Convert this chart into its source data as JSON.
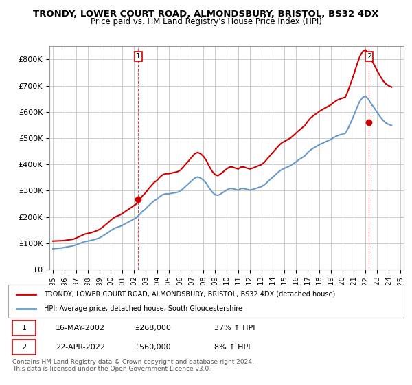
{
  "title": "TRONDY, LOWER COURT ROAD, ALMONDSBURY, BRISTOL, BS32 4DX",
  "subtitle": "Price paid vs. HM Land Registry's House Price Index (HPI)",
  "legend_line1": "TRONDY, LOWER COURT ROAD, ALMONDSBURY, BRISTOL, BS32 4DX (detached house)",
  "legend_line2": "HPI: Average price, detached house, South Gloucestershire",
  "annotation1_label": "1",
  "annotation1_date": "16-MAY-2002",
  "annotation1_price": "£268,000",
  "annotation1_hpi": "37% ↑ HPI",
  "annotation2_label": "2",
  "annotation2_date": "22-APR-2022",
  "annotation2_price": "£560,000",
  "annotation2_hpi": "8% ↑ HPI",
  "footnote": "Contains HM Land Registry data © Crown copyright and database right 2024.\nThis data is licensed under the Open Government Licence v3.0.",
  "red_color": "#cc0000",
  "blue_color": "#6699cc",
  "background_color": "#ffffff",
  "grid_color": "#cccccc",
  "ylim": [
    0,
    850000
  ],
  "yticks": [
    0,
    100000,
    200000,
    300000,
    400000,
    500000,
    600000,
    700000,
    800000
  ],
  "sale1_x": 2002.37,
  "sale1_y": 268000,
  "sale2_x": 2022.3,
  "sale2_y": 560000,
  "hpi_years": [
    1995.0,
    1995.25,
    1995.5,
    1995.75,
    1996.0,
    1996.25,
    1996.5,
    1996.75,
    1997.0,
    1997.25,
    1997.5,
    1997.75,
    1998.0,
    1998.25,
    1998.5,
    1998.75,
    1999.0,
    1999.25,
    1999.5,
    1999.75,
    2000.0,
    2000.25,
    2000.5,
    2000.75,
    2001.0,
    2001.25,
    2001.5,
    2001.75,
    2002.0,
    2002.25,
    2002.5,
    2002.75,
    2003.0,
    2003.25,
    2003.5,
    2003.75,
    2004.0,
    2004.25,
    2004.5,
    2004.75,
    2005.0,
    2005.25,
    2005.5,
    2005.75,
    2006.0,
    2006.25,
    2006.5,
    2006.75,
    2007.0,
    2007.25,
    2007.5,
    2007.75,
    2008.0,
    2008.25,
    2008.5,
    2008.75,
    2009.0,
    2009.25,
    2009.5,
    2009.75,
    2010.0,
    2010.25,
    2010.5,
    2010.75,
    2011.0,
    2011.25,
    2011.5,
    2011.75,
    2012.0,
    2012.25,
    2012.5,
    2012.75,
    2013.0,
    2013.25,
    2013.5,
    2013.75,
    2014.0,
    2014.25,
    2014.5,
    2014.75,
    2015.0,
    2015.25,
    2015.5,
    2015.75,
    2016.0,
    2016.25,
    2016.5,
    2016.75,
    2017.0,
    2017.25,
    2017.5,
    2017.75,
    2018.0,
    2018.25,
    2018.5,
    2018.75,
    2019.0,
    2019.25,
    2019.5,
    2019.75,
    2020.0,
    2020.25,
    2020.5,
    2020.75,
    2021.0,
    2021.25,
    2021.5,
    2021.75,
    2022.0,
    2022.25,
    2022.5,
    2022.75,
    2023.0,
    2023.25,
    2023.5,
    2023.75,
    2024.0,
    2024.25
  ],
  "hpi_values": [
    79000,
    80000,
    81000,
    82000,
    84000,
    86000,
    88000,
    90000,
    94000,
    98000,
    102000,
    106000,
    108000,
    110000,
    113000,
    116000,
    120000,
    126000,
    133000,
    140000,
    148000,
    155000,
    160000,
    163000,
    168000,
    174000,
    180000,
    186000,
    192000,
    198000,
    210000,
    222000,
    230000,
    242000,
    252000,
    262000,
    268000,
    278000,
    285000,
    288000,
    288000,
    290000,
    292000,
    294000,
    298000,
    308000,
    318000,
    328000,
    338000,
    348000,
    352000,
    348000,
    340000,
    328000,
    310000,
    295000,
    285000,
    282000,
    288000,
    295000,
    302000,
    308000,
    308000,
    305000,
    302000,
    308000,
    308000,
    305000,
    302000,
    305000,
    308000,
    312000,
    315000,
    322000,
    332000,
    342000,
    352000,
    362000,
    372000,
    380000,
    385000,
    390000,
    395000,
    402000,
    410000,
    418000,
    425000,
    432000,
    445000,
    455000,
    462000,
    468000,
    475000,
    480000,
    485000,
    490000,
    495000,
    502000,
    508000,
    512000,
    515000,
    518000,
    538000,
    562000,
    588000,
    615000,
    640000,
    655000,
    660000,
    648000,
    630000,
    615000,
    598000,
    582000,
    568000,
    558000,
    552000,
    548000
  ],
  "red_years": [
    1995.0,
    1995.25,
    1995.5,
    1995.75,
    1996.0,
    1996.25,
    1996.5,
    1996.75,
    1997.0,
    1997.25,
    1997.5,
    1997.75,
    1998.0,
    1998.25,
    1998.5,
    1998.75,
    1999.0,
    1999.25,
    1999.5,
    1999.75,
    2000.0,
    2000.25,
    2000.5,
    2000.75,
    2001.0,
    2001.25,
    2001.5,
    2001.75,
    2002.0,
    2002.25,
    2002.5,
    2002.75,
    2003.0,
    2003.25,
    2003.5,
    2003.75,
    2004.0,
    2004.25,
    2004.5,
    2004.75,
    2005.0,
    2005.25,
    2005.5,
    2005.75,
    2006.0,
    2006.25,
    2006.5,
    2006.75,
    2007.0,
    2007.25,
    2007.5,
    2007.75,
    2008.0,
    2008.25,
    2008.5,
    2008.75,
    2009.0,
    2009.25,
    2009.5,
    2009.75,
    2010.0,
    2010.25,
    2010.5,
    2010.75,
    2011.0,
    2011.25,
    2011.5,
    2011.75,
    2012.0,
    2012.25,
    2012.5,
    2012.75,
    2013.0,
    2013.25,
    2013.5,
    2013.75,
    2014.0,
    2014.25,
    2014.5,
    2014.75,
    2015.0,
    2015.25,
    2015.5,
    2015.75,
    2016.0,
    2016.25,
    2016.5,
    2016.75,
    2017.0,
    2017.25,
    2017.5,
    2017.75,
    2018.0,
    2018.25,
    2018.5,
    2018.75,
    2019.0,
    2019.25,
    2019.5,
    2019.75,
    2020.0,
    2020.25,
    2020.5,
    2020.75,
    2021.0,
    2021.25,
    2021.5,
    2021.75,
    2022.0,
    2022.25,
    2022.5,
    2022.75,
    2023.0,
    2023.25,
    2023.5,
    2023.75,
    2024.0,
    2024.25
  ],
  "red_values": [
    108000,
    108500,
    109000,
    109500,
    110500,
    112000,
    113500,
    115000,
    119500,
    124500,
    129500,
    134500,
    137000,
    139500,
    143000,
    147000,
    152000,
    159500,
    168500,
    177500,
    187500,
    196500,
    202500,
    206500,
    213000,
    220500,
    228000,
    235500,
    243500,
    250500,
    266000,
    281000,
    291500,
    306500,
    319000,
    331500,
    339500,
    352000,
    361000,
    364500,
    364500,
    367000,
    369500,
    372000,
    377500,
    390000,
    402500,
    415000,
    428000,
    440500,
    445500,
    440500,
    430500,
    415000,
    392500,
    373500,
    361000,
    357000,
    364500,
    373500,
    382500,
    390000,
    390000,
    386000,
    382500,
    390000,
    390000,
    386000,
    382500,
    386000,
    390000,
    395000,
    399000,
    407500,
    420500,
    433000,
    446000,
    458500,
    471000,
    481500,
    487500,
    494000,
    500000,
    509000,
    519500,
    529500,
    538500,
    547500,
    563500,
    576500,
    585500,
    593000,
    601500,
    608500,
    614500,
    620500,
    627000,
    635500,
    643500,
    648500,
    652500,
    656000,
    681500,
    712500,
    745000,
    779000,
    811000,
    830000,
    836500,
    820500,
    798000,
    779000,
    757500,
    737500,
    719500,
    707000,
    699500,
    694500
  ],
  "xlim_left": 1994.7,
  "xlim_right": 2025.3
}
